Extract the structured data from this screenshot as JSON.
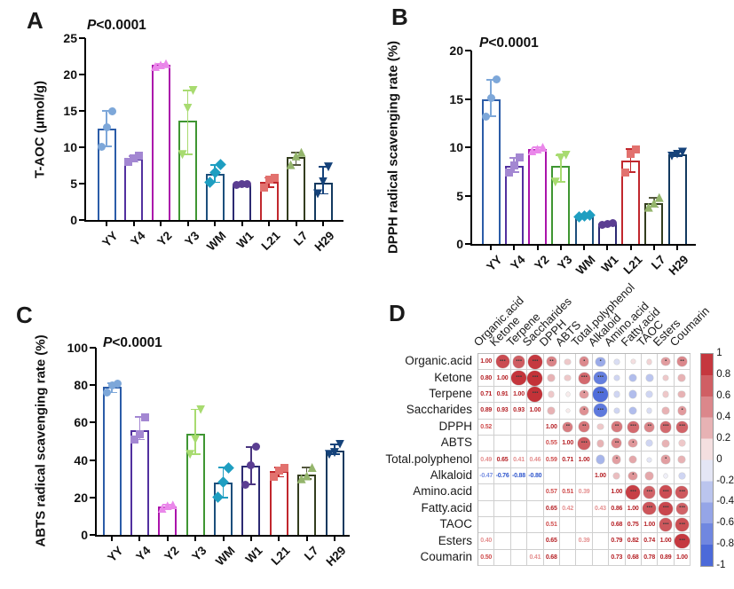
{
  "panels": {
    "A": {
      "letter": "A",
      "p_label": "P",
      "p_value": "<0.0001"
    },
    "B": {
      "letter": "B",
      "p_label": "P",
      "p_value": "<0.0001"
    },
    "C": {
      "letter": "C",
      "p_label": "P",
      "p_value": "<0.0001"
    },
    "D": {
      "letter": "D"
    }
  },
  "chart_data": [
    {
      "type": "bar",
      "panel": "A",
      "title": "",
      "ylabel": "T-AOC (μmol/g)",
      "annotation": "P<0.0001",
      "ylim": [
        0,
        25
      ],
      "yticks": [
        0,
        5,
        10,
        15,
        20,
        25
      ],
      "categories": [
        "YY",
        "Y4",
        "Y2",
        "Y3",
        "WM",
        "W1",
        "L21",
        "L7",
        "H29"
      ],
      "values": [
        12.6,
        8.4,
        21.3,
        13.7,
        6.4,
        4.9,
        5.3,
        8.7,
        5.1
      ],
      "points": [
        [
          10.1,
          12.8,
          15.0
        ],
        [
          8.0,
          8.5,
          8.8
        ],
        [
          21.1,
          21.3,
          21.5
        ],
        [
          9.0,
          15.4,
          17.8
        ],
        [
          5.2,
          6.5,
          7.6
        ],
        [
          4.8,
          4.9,
          5.0
        ],
        [
          4.5,
          5.6,
          5.8
        ],
        [
          7.6,
          8.8,
          9.3
        ],
        [
          3.6,
          5.3,
          7.3
        ]
      ],
      "error_low": [
        10.1,
        8.0,
        21.1,
        9.0,
        5.2,
        4.8,
        4.5,
        7.6,
        3.6
      ],
      "error_high": [
        15.0,
        8.8,
        21.5,
        17.8,
        7.6,
        5.0,
        5.8,
        9.3,
        7.3
      ]
    },
    {
      "type": "bar",
      "panel": "B",
      "title": "",
      "ylabel": "DPPH radical scavenging rate (%)",
      "annotation": "P<0.0001",
      "ylim": [
        0,
        20
      ],
      "yticks": [
        0,
        5,
        10,
        15,
        20
      ],
      "categories": [
        "YY",
        "Y4",
        "Y2",
        "Y3",
        "WM",
        "W1",
        "L21",
        "L7",
        "H29"
      ],
      "values": [
        15.0,
        8.1,
        9.8,
        8.1,
        2.9,
        2.1,
        8.6,
        4.2,
        9.3
      ],
      "points": [
        [
          13.2,
          15.1,
          17.0
        ],
        [
          7.4,
          8.1,
          8.9
        ],
        [
          9.6,
          9.8,
          10.0
        ],
        [
          6.4,
          8.9,
          9.2
        ],
        [
          2.8,
          2.9,
          3.0
        ],
        [
          2.0,
          2.1,
          2.2
        ],
        [
          7.4,
          9.3,
          9.8
        ],
        [
          3.8,
          4.2,
          4.8
        ],
        [
          9.1,
          9.3,
          9.5
        ]
      ],
      "error_low": [
        13.2,
        7.4,
        9.6,
        6.4,
        2.8,
        2.0,
        7.4,
        3.8,
        9.1
      ],
      "error_high": [
        17.0,
        8.9,
        10.0,
        9.2,
        3.0,
        2.2,
        9.8,
        4.8,
        9.5
      ]
    },
    {
      "type": "bar",
      "panel": "C",
      "title": "",
      "ylabel": "ABTS radical scavenging rate (%)",
      "annotation": "P<0.0001",
      "ylim": [
        0,
        100
      ],
      "yticks": [
        0,
        20,
        40,
        60,
        80,
        100
      ],
      "categories": [
        "YY",
        "Y4",
        "Y2",
        "Y3",
        "WM",
        "W1",
        "L21",
        "L7",
        "H29"
      ],
      "values": [
        79,
        56,
        15,
        54,
        28,
        37,
        34,
        32,
        45
      ],
      "points": [
        [
          76,
          80,
          81
        ],
        [
          51,
          54,
          63
        ],
        [
          14,
          15.5,
          16
        ],
        [
          43,
          51,
          67
        ],
        [
          20,
          28,
          36
        ],
        [
          27,
          37,
          47
        ],
        [
          31,
          34.5,
          36
        ],
        [
          30,
          31.5,
          36
        ],
        [
          43,
          44,
          48.5
        ]
      ],
      "error_low": [
        76,
        51,
        14,
        43,
        20,
        27,
        31,
        30,
        43
      ],
      "error_high": [
        81,
        63,
        16,
        67,
        36,
        47,
        36,
        36,
        48.5
      ]
    },
    {
      "type": "heatmap",
      "panel": "D",
      "variables": [
        "Organic.acid",
        "Ketone",
        "Terpene",
        "Saccharides",
        "DPPH",
        "ABTS",
        "Total.polyphenol",
        "Alkaloid",
        "Amino.acid",
        "Fatty.acid",
        "TAOC",
        "Esters",
        "Coumarin"
      ],
      "matrix": [
        [
          1.0,
          0.8,
          0.71,
          0.89,
          0.52,
          0.2,
          0.49,
          -0.47,
          -0.15,
          0.1,
          0.15,
          0.4,
          0.5
        ],
        [
          0.8,
          1.0,
          0.91,
          0.93,
          0.3,
          0.2,
          0.65,
          -0.76,
          -0.2,
          -0.35,
          -0.3,
          0.2,
          0.3
        ],
        [
          0.71,
          0.91,
          1.0,
          0.93,
          0.2,
          0.05,
          0.41,
          -0.88,
          -0.2,
          -0.35,
          -0.2,
          0.2,
          0.3
        ],
        [
          0.89,
          0.93,
          0.93,
          1.0,
          0.3,
          0.05,
          0.46,
          -0.8,
          -0.2,
          -0.35,
          -0.15,
          0.3,
          0.41
        ],
        [
          0.52,
          0.3,
          0.2,
          0.3,
          1.0,
          0.55,
          0.59,
          0.2,
          0.57,
          0.65,
          0.51,
          0.65,
          0.68
        ],
        [
          0.2,
          0.2,
          0.05,
          0.05,
          0.55,
          1.0,
          0.71,
          0.3,
          0.51,
          0.42,
          -0.2,
          0.3,
          0.2
        ],
        [
          0.49,
          0.65,
          0.41,
          0.46,
          0.59,
          0.71,
          1.0,
          -0.4,
          0.39,
          0.35,
          -0.1,
          0.39,
          0.3
        ],
        [
          -0.47,
          -0.76,
          -0.88,
          -0.8,
          0.2,
          0.3,
          -0.4,
          1.0,
          0.25,
          0.43,
          0.35,
          -0.05,
          -0.2
        ],
        [
          -0.15,
          -0.2,
          -0.2,
          -0.2,
          0.57,
          0.51,
          0.39,
          0.25,
          1.0,
          0.86,
          0.68,
          0.79,
          0.73
        ],
        [
          0.1,
          -0.35,
          -0.35,
          -0.35,
          0.65,
          0.42,
          0.35,
          0.43,
          0.86,
          1.0,
          0.75,
          0.82,
          0.68
        ],
        [
          0.15,
          -0.3,
          -0.2,
          -0.15,
          0.51,
          -0.2,
          -0.1,
          0.35,
          0.68,
          0.75,
          1.0,
          0.74,
          0.78
        ],
        [
          0.4,
          0.2,
          0.2,
          0.3,
          0.65,
          0.3,
          0.39,
          -0.05,
          0.79,
          0.82,
          0.74,
          1.0,
          0.89
        ],
        [
          0.5,
          0.3,
          0.3,
          0.41,
          0.68,
          0.2,
          0.3,
          -0.2,
          0.73,
          0.68,
          0.78,
          0.89,
          1.0
        ]
      ],
      "stars": [
        [
          0,
          3,
          3,
          3,
          2,
          0,
          1,
          1,
          0,
          0,
          0,
          1,
          2
        ],
        [
          3,
          0,
          3,
          3,
          0,
          0,
          3,
          3,
          0,
          0,
          0,
          0,
          0
        ],
        [
          3,
          3,
          0,
          3,
          0,
          0,
          1,
          3,
          0,
          0,
          0,
          0,
          0
        ],
        [
          3,
          3,
          3,
          0,
          0,
          0,
          1,
          3,
          0,
          0,
          0,
          0,
          1
        ],
        [
          2,
          0,
          0,
          0,
          0,
          2,
          2,
          0,
          2,
          3,
          2,
          3,
          3
        ],
        [
          0,
          0,
          0,
          0,
          2,
          0,
          3,
          0,
          2,
          1,
          0,
          0,
          0
        ],
        [
          1,
          3,
          1,
          1,
          2,
          3,
          0,
          0,
          1,
          0,
          0,
          1,
          0
        ],
        [
          1,
          3,
          3,
          3,
          0,
          0,
          0,
          0,
          0,
          1,
          0,
          0,
          0
        ],
        [
          0,
          0,
          0,
          0,
          2,
          2,
          1,
          0,
          0,
          3,
          3,
          3,
          3
        ],
        [
          0,
          0,
          0,
          0,
          3,
          1,
          0,
          1,
          3,
          0,
          3,
          3,
          3
        ],
        [
          0,
          0,
          0,
          0,
          2,
          0,
          0,
          0,
          3,
          3,
          0,
          3,
          3
        ],
        [
          1,
          0,
          0,
          0,
          3,
          0,
          1,
          0,
          3,
          3,
          3,
          0,
          3
        ],
        [
          2,
          0,
          0,
          1,
          3,
          0,
          0,
          0,
          3,
          3,
          3,
          3,
          0
        ]
      ],
      "colorbar_ticks": [
        "1",
        "0.8",
        "0.6",
        "0.4",
        "0.2",
        "0",
        "-0.2",
        "-0.4",
        "-0.6",
        "-0.8",
        "-1"
      ],
      "colorbar_range": [
        1,
        -1
      ],
      "colors": {
        "strong_positive": "#bf242b",
        "strong_negative": "#3b5cd6",
        "zero": "#fcfafa"
      }
    }
  ],
  "group_styles": [
    {
      "group": "YY",
      "shape": "circle",
      "bar_color": "#2b5ca8",
      "marker_color": "#7da7d9",
      "err_color": "#7da7d9"
    },
    {
      "group": "Y4",
      "shape": "square",
      "bar_color": "#52309f",
      "marker_color": "#a387d2",
      "err_color": "#a387d2"
    },
    {
      "group": "Y2",
      "shape": "triangle-up",
      "bar_color": "#ab13ab",
      "marker_color": "#ea87ea",
      "err_color": "#ea87ea"
    },
    {
      "group": "Y3",
      "shape": "triangle-down",
      "bar_color": "#3f9632",
      "marker_color": "#a8db70",
      "err_color": "#a8db70"
    },
    {
      "group": "WM",
      "shape": "diamond",
      "bar_color": "#1c4f7c",
      "marker_color": "#1e9ec1",
      "err_color": "#1e9ec1"
    },
    {
      "group": "W1",
      "shape": "circle",
      "bar_color": "#2c2a72",
      "marker_color": "#5b3e92",
      "err_color": "#4a3580"
    },
    {
      "group": "L21",
      "shape": "square",
      "bar_color": "#c1272d",
      "marker_color": "#e2716e",
      "err_color": "#c1272d"
    },
    {
      "group": "L7",
      "shape": "triangle-up",
      "bar_color": "#333d1e",
      "marker_color": "#94b56c",
      "err_color": "#55593f"
    },
    {
      "group": "H29",
      "shape": "triangle-down",
      "bar_color": "#12395f",
      "marker_color": "#15427a",
      "err_color": "#15427a"
    }
  ]
}
